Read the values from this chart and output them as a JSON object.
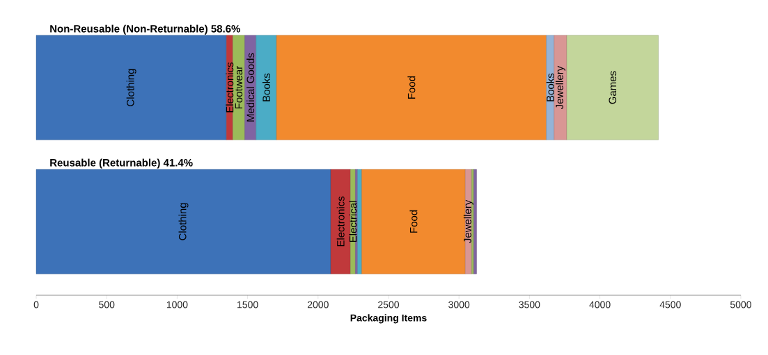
{
  "chart_data": {
    "type": "bar",
    "orientation": "horizontal",
    "stacked": true,
    "categories": [
      "Non-Reusable (Non-Returnable)  58.6%",
      "Reusable (Returnable)  41.4%"
    ],
    "xlabel": "Packaging Items",
    "xlim": [
      0,
      5000
    ],
    "xticks": [
      0,
      500,
      1000,
      1500,
      2000,
      2500,
      3000,
      3500,
      4000,
      4500,
      5000
    ],
    "series": [
      {
        "name": "Clothing",
        "color": "#3d72b8",
        "values": [
          1350,
          null
        ]
      },
      {
        "name": "Electronics",
        "color": "#c0393b",
        "values": [
          45,
          null
        ]
      },
      {
        "name": "Footwear",
        "color": "#9bbb59",
        "values": [
          85,
          null
        ]
      },
      {
        "name": "Medical Goods",
        "color": "#8064a2",
        "values": [
          80,
          null
        ]
      },
      {
        "name": "Books",
        "color": "#4bacc6",
        "values": [
          145,
          null
        ]
      },
      {
        "name": "Food",
        "color": "#f28a2e",
        "values": [
          1915,
          null
        ]
      },
      {
        "name": "Books",
        "color": "#95b3d7",
        "values": [
          55,
          null
        ]
      },
      {
        "name": "Jewellery",
        "color": "#d99694",
        "values": [
          90,
          null
        ]
      },
      {
        "name": "Games",
        "color": "#c3d69b",
        "values": [
          650,
          null
        ]
      },
      {
        "name": "Clothing",
        "color": "#3d72b8",
        "values": [
          null,
          2090
        ]
      },
      {
        "name": "Electronics",
        "color": "#c0393b",
        "values": [
          null,
          140
        ]
      },
      {
        "name": "Electrical",
        "color": "#9bbb59",
        "values": [
          null,
          35
        ]
      },
      {
        "color": "#8064a2",
        "values": [
          null,
          15
        ]
      },
      {
        "color": "#4bacc6",
        "values": [
          null,
          30
        ]
      },
      {
        "name": "Food",
        "color": "#f28a2e",
        "values": [
          null,
          735
        ]
      },
      {
        "name": "Jewellery",
        "color": "#d99694",
        "values": [
          null,
          45
        ]
      },
      {
        "color": "#9bbb59",
        "values": [
          null,
          15
        ]
      },
      {
        "color": "#8064a2",
        "values": [
          null,
          20
        ]
      }
    ]
  }
}
